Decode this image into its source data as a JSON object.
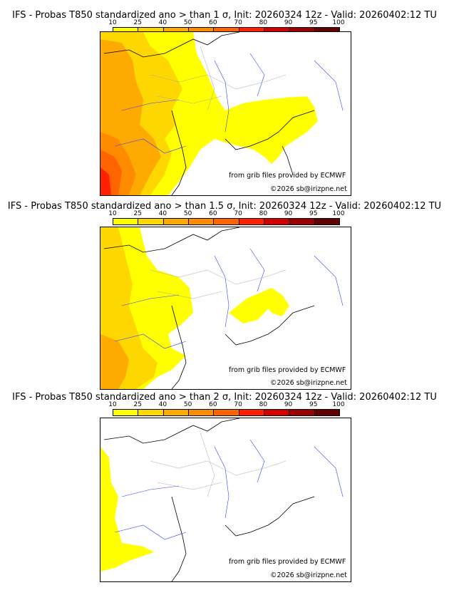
{
  "colorbar": {
    "ticks": [
      "10",
      "25",
      "40",
      "50",
      "60",
      "70",
      "80",
      "90",
      "95",
      "100"
    ],
    "colors": [
      "#ffff00",
      "#ffd700",
      "#ffaa00",
      "#ff8c00",
      "#ff6400",
      "#ff2000",
      "#d40000",
      "#9a0000",
      "#600000"
    ]
  },
  "panels": [
    {
      "title": "IFS - Probas T850  standardized ano > than 1 σ, Init: 20260324 12z - Valid: 20260402:12 TU",
      "threshold": "1"
    },
    {
      "title": "IFS - Probas T850  standardized ano > than 1.5 σ, Init: 20260324 12z - Valid: 20260402:12 TU",
      "threshold": "1.5"
    },
    {
      "title": "IFS - Probas T850  standardized ano > than 2 σ, Init: 20260324 12z - Valid: 20260402:12 TU",
      "threshold": "2"
    }
  ],
  "credits": {
    "source": "from grib files provided by ECMWF",
    "copyright": "©2026 sb@irizpne.net"
  }
}
